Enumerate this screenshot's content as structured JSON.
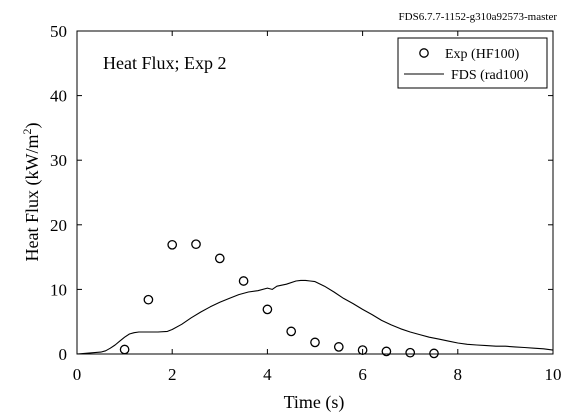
{
  "version_label": "FDS6.7.7-1152-g310a92573-master",
  "chart_data": {
    "type": "line",
    "title": "Heat Flux; Exp 2",
    "xlabel": "Time (s)",
    "ylabel_main": "Heat Flux (kW/m",
    "ylabel_sup": "2",
    "ylabel_end": ")",
    "xlim": [
      0,
      10
    ],
    "ylim": [
      0,
      50
    ],
    "xticks": [
      0,
      2,
      4,
      6,
      8,
      10
    ],
    "yticks": [
      0,
      10,
      20,
      30,
      40,
      50
    ],
    "grid": false,
    "legend_position": "top-right",
    "series": [
      {
        "name": "Exp (HF100)",
        "style": "circle-markers",
        "x": [
          1.0,
          1.5,
          2.0,
          2.5,
          3.0,
          3.5,
          4.0,
          4.5,
          5.0,
          5.5,
          6.0,
          6.5,
          7.0,
          7.5
        ],
        "y": [
          0.7,
          8.4,
          16.9,
          17.0,
          14.8,
          11.3,
          6.9,
          3.5,
          1.8,
          1.1,
          0.6,
          0.4,
          0.2,
          0.1
        ]
      },
      {
        "name": "FDS (rad100)",
        "style": "solid-line",
        "x": [
          0.0,
          0.5,
          0.6,
          0.7,
          0.8,
          0.9,
          1.0,
          1.1,
          1.2,
          1.3,
          1.4,
          1.5,
          1.7,
          1.9,
          2.0,
          2.2,
          2.4,
          2.6,
          2.8,
          3.0,
          3.2,
          3.4,
          3.6,
          3.8,
          4.0,
          4.1,
          4.2,
          4.4,
          4.6,
          4.7,
          4.8,
          4.9,
          5.0,
          5.2,
          5.4,
          5.6,
          5.8,
          6.0,
          6.2,
          6.4,
          6.6,
          6.8,
          7.0,
          7.2,
          7.4,
          7.6,
          7.8,
          8.0,
          8.2,
          8.4,
          8.6,
          8.8,
          9.0,
          9.2,
          9.4,
          9.6,
          9.8,
          10.0
        ],
        "y": [
          0.0,
          0.3,
          0.5,
          0.9,
          1.4,
          2.0,
          2.6,
          3.1,
          3.3,
          3.4,
          3.4,
          3.4,
          3.4,
          3.5,
          3.8,
          4.6,
          5.6,
          6.5,
          7.3,
          8.0,
          8.6,
          9.2,
          9.6,
          9.8,
          10.2,
          10.0,
          10.5,
          10.8,
          11.3,
          11.4,
          11.4,
          11.3,
          11.2,
          10.5,
          9.6,
          8.6,
          7.8,
          6.9,
          6.1,
          5.2,
          4.5,
          3.9,
          3.4,
          3.0,
          2.6,
          2.3,
          2.0,
          1.7,
          1.5,
          1.4,
          1.3,
          1.2,
          1.2,
          1.1,
          1.0,
          0.9,
          0.8,
          0.6
        ]
      }
    ]
  }
}
